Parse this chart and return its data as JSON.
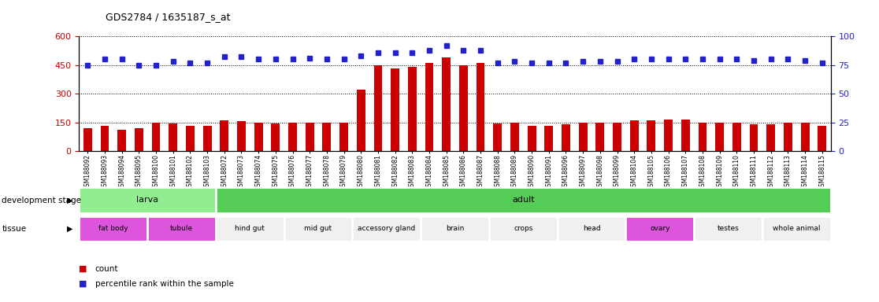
{
  "title": "GDS2784 / 1635187_s_at",
  "samples": [
    "GSM188092",
    "GSM188093",
    "GSM188094",
    "GSM188095",
    "GSM188100",
    "GSM188101",
    "GSM188102",
    "GSM188103",
    "GSM188072",
    "GSM188073",
    "GSM188074",
    "GSM188075",
    "GSM188076",
    "GSM188077",
    "GSM188078",
    "GSM188079",
    "GSM188080",
    "GSM188081",
    "GSM188082",
    "GSM188083",
    "GSM188084",
    "GSM188085",
    "GSM188086",
    "GSM188087",
    "GSM188088",
    "GSM188089",
    "GSM188090",
    "GSM188091",
    "GSM188096",
    "GSM188097",
    "GSM188098",
    "GSM188099",
    "GSM188104",
    "GSM188105",
    "GSM188106",
    "GSM188107",
    "GSM188108",
    "GSM188109",
    "GSM188110",
    "GSM188111",
    "GSM188112",
    "GSM188113",
    "GSM188114",
    "GSM188115"
  ],
  "counts": [
    120,
    132,
    110,
    120,
    148,
    145,
    130,
    130,
    160,
    155,
    148,
    145,
    148,
    148,
    148,
    148,
    320,
    450,
    430,
    440,
    460,
    490,
    450,
    460,
    145,
    148,
    132,
    130,
    140,
    150,
    148,
    148,
    160,
    160,
    165,
    165,
    150,
    148,
    148,
    138,
    140,
    148,
    148,
    132
  ],
  "percentiles": [
    75,
    80,
    80,
    75,
    75,
    78,
    77,
    77,
    82,
    82,
    80,
    80,
    80,
    81,
    80,
    80,
    83,
    86,
    86,
    86,
    88,
    92,
    88,
    88,
    77,
    78,
    77,
    77,
    77,
    78,
    78,
    78,
    80,
    80,
    80,
    80,
    80,
    80,
    80,
    79,
    80,
    80,
    79,
    77
  ],
  "bar_color": "#cc0000",
  "dot_color": "#2222cc",
  "left_yticks": [
    0,
    150,
    300,
    450,
    600
  ],
  "right_yticks": [
    0,
    25,
    50,
    75,
    100
  ],
  "ylim_left": [
    0,
    600
  ],
  "ylim_right": [
    0,
    100
  ],
  "development_stages": [
    {
      "label": "larva",
      "start": 0,
      "end": 8,
      "color": "#90ee90"
    },
    {
      "label": "adult",
      "start": 8,
      "end": 44,
      "color": "#55cc55"
    }
  ],
  "tissues": [
    {
      "label": "fat body",
      "start": 0,
      "end": 4,
      "color": "#dd55dd"
    },
    {
      "label": "tubule",
      "start": 4,
      "end": 8,
      "color": "#dd55dd"
    },
    {
      "label": "hind gut",
      "start": 8,
      "end": 12,
      "color": "#f0f0f0"
    },
    {
      "label": "mid gut",
      "start": 12,
      "end": 16,
      "color": "#f0f0f0"
    },
    {
      "label": "accessory gland",
      "start": 16,
      "end": 20,
      "color": "#f0f0f0"
    },
    {
      "label": "brain",
      "start": 20,
      "end": 24,
      "color": "#f0f0f0"
    },
    {
      "label": "crops",
      "start": 24,
      "end": 28,
      "color": "#f0f0f0"
    },
    {
      "label": "head",
      "start": 28,
      "end": 32,
      "color": "#f0f0f0"
    },
    {
      "label": "ovary",
      "start": 32,
      "end": 36,
      "color": "#dd55dd"
    },
    {
      "label": "testes",
      "start": 36,
      "end": 40,
      "color": "#f0f0f0"
    },
    {
      "label": "whole animal",
      "start": 40,
      "end": 44,
      "color": "#f0f0f0"
    }
  ],
  "background_color": "#ffffff",
  "ytick_color_left": "#cc0000",
  "ytick_color_right": "#2222cc",
  "left_label": "development stage",
  "left_label2": "tissue"
}
